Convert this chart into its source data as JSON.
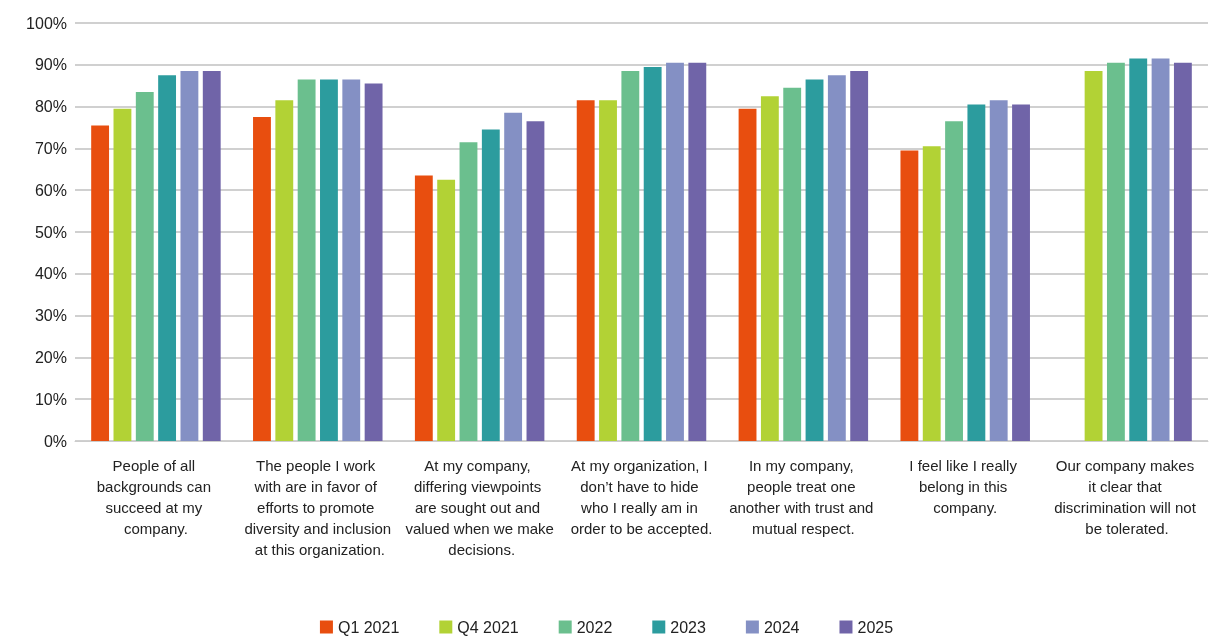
{
  "chart_data": {
    "type": "bar",
    "categories": [
      "People of all backgrounds can succeed at my company.",
      "The people I work with are in favor of efforts to promote diversity and inclusion at this organization.",
      "At my company, differing viewpoints are sought out and valued when we make decisions.",
      "At my organization, I don’t have to hide who I really am in order to be accepted.",
      "In my company, people treat one another with trust and mutual respect.",
      "I feel like I really belong in this company.",
      "Our company makes it clear that discrimination will not be tolerated."
    ],
    "series": [
      {
        "name": "Q1 2021",
        "color": "#e84e0f",
        "values": [
          75.5,
          77.5,
          63.5,
          81.5,
          79.5,
          69.5,
          null
        ]
      },
      {
        "name": "Q4 2021",
        "color": "#b2d235",
        "values": [
          79.5,
          81.5,
          62.5,
          81.5,
          82.5,
          70.5,
          88.5
        ]
      },
      {
        "name": "2022",
        "color": "#6bbf8e",
        "values": [
          83.5,
          86.5,
          71.5,
          88.5,
          84.5,
          76.5,
          90.5
        ]
      },
      {
        "name": "2023",
        "color": "#2c9c9e",
        "values": [
          87.5,
          86.5,
          74.5,
          89.5,
          86.5,
          80.5,
          91.5
        ]
      },
      {
        "name": "2024",
        "color": "#8490c4",
        "values": [
          88.5,
          86.5,
          78.5,
          90.5,
          87.5,
          81.5,
          91.5
        ]
      },
      {
        "name": "2025",
        "color": "#7064a8",
        "values": [
          88.5,
          85.5,
          76.5,
          90.5,
          88.5,
          80.5,
          90.5
        ]
      }
    ],
    "ylim": [
      0,
      100
    ],
    "yticks": [
      {
        "value": 0,
        "label": "0%"
      },
      {
        "value": 10,
        "label": "10%"
      },
      {
        "value": 20,
        "label": "20%"
      },
      {
        "value": 30,
        "label": "30%"
      },
      {
        "value": 40,
        "label": "40%"
      },
      {
        "value": 50,
        "label": "50%"
      },
      {
        "value": 60,
        "label": "60%"
      },
      {
        "value": 70,
        "label": "70%"
      },
      {
        "value": 80,
        "label": "80%"
      },
      {
        "value": 90,
        "label": "90%"
      },
      {
        "value": 100,
        "label": "100%"
      }
    ],
    "grid": "y",
    "legend": "bottom"
  }
}
